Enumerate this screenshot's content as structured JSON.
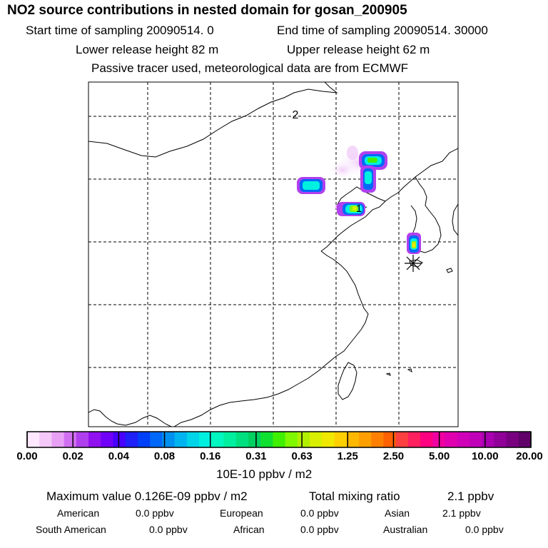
{
  "header": {
    "title": "NO2 source contributions in nested domain for gosan_200905",
    "start_time": "Start time of sampling 20090514.     0",
    "end_time": "End time of sampling 20090514. 30000",
    "lower_release": "Lower release height   82 m",
    "upper_release": "Upper release height   62 m",
    "note": "Passive tracer used, meteorological data are from ECMWF"
  },
  "map": {
    "contour_label": "2",
    "receptor_marker": "asterisk-marker",
    "source_label": "1"
  },
  "colorbar": {
    "tick_labels": [
      "0.00",
      "0.02",
      "0.04",
      "0.08",
      "0.16",
      "0.31",
      "0.63",
      "1.25",
      "2.50",
      "5.00",
      "10.00",
      "20.00"
    ],
    "unit": "10E-10 ppbv / m2",
    "colors": [
      "#ffe8ff",
      "#f4c8f8",
      "#e8a0f4",
      "#d070f0",
      "#b040ee",
      "#9010f0",
      "#7000f8",
      "#4800ff",
      "#2020f8",
      "#0040f8",
      "#0068f8",
      "#0090f0",
      "#00b4f0",
      "#00d4e8",
      "#00f0e0",
      "#00f8c0",
      "#00f0a0",
      "#00e080",
      "#00d060",
      "#10e030",
      "#40f000",
      "#80f800",
      "#b0f000",
      "#d8f000",
      "#f0e800",
      "#ffd000",
      "#ffb800",
      "#ffa000",
      "#ff8000",
      "#ff6000",
      "#ff4040",
      "#ff2060",
      "#ff0080",
      "#f000a0",
      "#e000b0",
      "#d000b8",
      "#c000b8",
      "#a800b0",
      "#900098",
      "#780080",
      "#600068"
    ]
  },
  "footer": {
    "max_value": "Maximum value  0.126E-09 ppbv / m2",
    "total_label": "Total mixing ratio",
    "total_value": "2.1 ppbv",
    "regions": [
      {
        "name": "American",
        "value": "0.0 ppbv"
      },
      {
        "name": "European",
        "value": "0.0 ppbv"
      },
      {
        "name": "Asian",
        "value": "2.1 ppbv"
      },
      {
        "name": "South American",
        "value": "0.0 ppbv"
      },
      {
        "name": "African",
        "value": "0.0 ppbv"
      },
      {
        "name": "Australian",
        "value": "0.0 ppbv"
      }
    ]
  }
}
